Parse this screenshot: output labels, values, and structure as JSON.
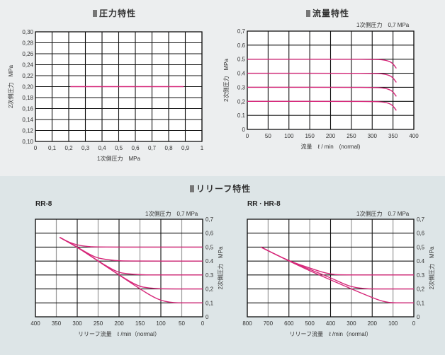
{
  "sections": {
    "top_left_title": "圧力特性",
    "top_right_title": "流量特性",
    "bottom_title": "リリーフ特性"
  },
  "colors": {
    "curve": "#d6287a",
    "grid_major": "#111111",
    "grid_minor": "#999999",
    "top_bg": "#eceeef",
    "bottom_bg": "#dde5e7"
  },
  "chart_data": [
    {
      "id": "pressure",
      "type": "line",
      "title": "圧力特性",
      "xlabel": "1次側圧力　MPa",
      "ylabel": "2次側圧力　MPa",
      "xlim": [
        0,
        1
      ],
      "ylim": [
        0.1,
        0.3
      ],
      "x_ticks": [
        "0",
        "0,1",
        "0,2",
        "0,3",
        "0,4",
        "0,5",
        "0,6",
        "0,7",
        "0,8",
        "0,9",
        "1"
      ],
      "y_ticks": [
        "0,10",
        "0,12",
        "0,14",
        "0,16",
        "0,18",
        "0,20",
        "0,22",
        "0,24",
        "0,26",
        "0,28",
        "0,30"
      ],
      "grid": true,
      "series": [
        {
          "name": "set 0.20",
          "x": [
            0.21,
            0.89
          ],
          "y": [
            0.2,
            0.2
          ]
        }
      ]
    },
    {
      "id": "flow",
      "type": "line",
      "title": "流量特性",
      "annotation": "1次側圧力　0,7 MPa",
      "xlabel": "流量　ℓ / min　(normal)",
      "ylabel": "2次側圧力　MPa",
      "xlim": [
        0,
        400
      ],
      "ylim": [
        0,
        0.7
      ],
      "x_ticks": [
        "0",
        "50",
        "100",
        "150",
        "200",
        "250",
        "300",
        "350",
        "400"
      ],
      "y_ticks": [
        "0",
        "0.1",
        "0,2",
        "0.3",
        "0.4",
        "0.5",
        "0.6",
        "0,7"
      ],
      "grid": true,
      "series": [
        {
          "name": "set 0.5",
          "x": [
            0,
            300,
            330,
            345,
            352,
            358
          ],
          "y": [
            0.5,
            0.5,
            0.495,
            0.48,
            0.46,
            0.435
          ]
        },
        {
          "name": "set 0.4",
          "x": [
            0,
            300,
            330,
            345,
            352,
            358
          ],
          "y": [
            0.4,
            0.4,
            0.395,
            0.38,
            0.36,
            0.335
          ]
        },
        {
          "name": "set 0.3",
          "x": [
            0,
            300,
            330,
            345,
            352,
            358
          ],
          "y": [
            0.3,
            0.3,
            0.295,
            0.28,
            0.26,
            0.235
          ]
        },
        {
          "name": "set 0.2",
          "x": [
            0,
            300,
            330,
            345,
            352,
            358
          ],
          "y": [
            0.2,
            0.2,
            0.195,
            0.18,
            0.16,
            0.135
          ]
        }
      ]
    },
    {
      "id": "relief_rr8",
      "type": "line",
      "title": "RR-8",
      "annotation": "1次側圧力　0,7 MPa",
      "xlabel": "リリーフ流量　ℓ /min（normal）",
      "ylabel": "2次側圧力　MPa",
      "xlim": [
        400,
        0
      ],
      "ylim": [
        0,
        0.7
      ],
      "x_ticks": [
        "400",
        "350",
        "300",
        "250",
        "200",
        "150",
        "100",
        "50",
        "0"
      ],
      "y_ticks": [
        "0",
        "0,1",
        "0,2",
        "0.3",
        "0.4",
        "0,5",
        "0,6",
        "0,7"
      ],
      "grid": true,
      "series": [
        {
          "name": "set 0.5",
          "x": [
            342,
            320,
            300,
            280,
            250,
            0
          ],
          "y": [
            0.57,
            0.535,
            0.515,
            0.505,
            0.5,
            0.5
          ]
        },
        {
          "name": "set 0.4",
          "x": [
            342,
            300,
            260,
            240,
            210,
            180,
            0
          ],
          "y": [
            0.57,
            0.5,
            0.43,
            0.415,
            0.403,
            0.4,
            0.4
          ]
        },
        {
          "name": "set 0.3",
          "x": [
            342,
            300,
            250,
            205,
            180,
            150,
            120,
            0
          ],
          "y": [
            0.57,
            0.5,
            0.4,
            0.32,
            0.308,
            0.302,
            0.3,
            0.3
          ]
        },
        {
          "name": "set 0.2",
          "x": [
            342,
            300,
            250,
            200,
            155,
            130,
            100,
            70,
            0
          ],
          "y": [
            0.57,
            0.5,
            0.4,
            0.3,
            0.22,
            0.207,
            0.201,
            0.2,
            0.2
          ]
        },
        {
          "name": "set 0.1",
          "x": [
            342,
            300,
            250,
            200,
            150,
            120,
            100,
            80,
            60,
            0
          ],
          "y": [
            0.57,
            0.5,
            0.4,
            0.3,
            0.2,
            0.145,
            0.118,
            0.105,
            0.1,
            0.1
          ]
        }
      ]
    },
    {
      "id": "relief_rrhr8",
      "type": "line",
      "title": "RR · HR-8",
      "annotation": "1次側圧力　0.7 MPa",
      "xlabel": "リリーフ流量　ℓ /min（normal）",
      "ylabel": "2次側圧力　MPa",
      "xlim": [
        800,
        0
      ],
      "ylim": [
        0,
        0.7
      ],
      "x_ticks": [
        "800",
        "700",
        "600",
        "500",
        "400",
        "300",
        "200",
        "100",
        "0"
      ],
      "y_ticks": [
        "0",
        "0,1",
        "0,2",
        "0.3",
        "0.4",
        "0,5",
        "0,6",
        "0,7"
      ],
      "grid": true,
      "series": [
        {
          "name": "set 0.3",
          "x": [
            735,
            600,
            500,
            440,
            400,
            360,
            0
          ],
          "y": [
            0.5,
            0.4,
            0.35,
            0.32,
            0.307,
            0.3,
            0.3
          ]
        },
        {
          "name": "set 0.2",
          "x": [
            735,
            600,
            500,
            400,
            320,
            280,
            240,
            200,
            0
          ],
          "y": [
            0.5,
            0.4,
            0.34,
            0.28,
            0.225,
            0.21,
            0.203,
            0.2,
            0.2
          ]
        },
        {
          "name": "set 0.1",
          "x": [
            735,
            600,
            500,
            400,
            300,
            220,
            160,
            120,
            90,
            0
          ],
          "y": [
            0.5,
            0.4,
            0.33,
            0.265,
            0.2,
            0.15,
            0.115,
            0.103,
            0.1,
            0.1
          ]
        }
      ]
    }
  ]
}
